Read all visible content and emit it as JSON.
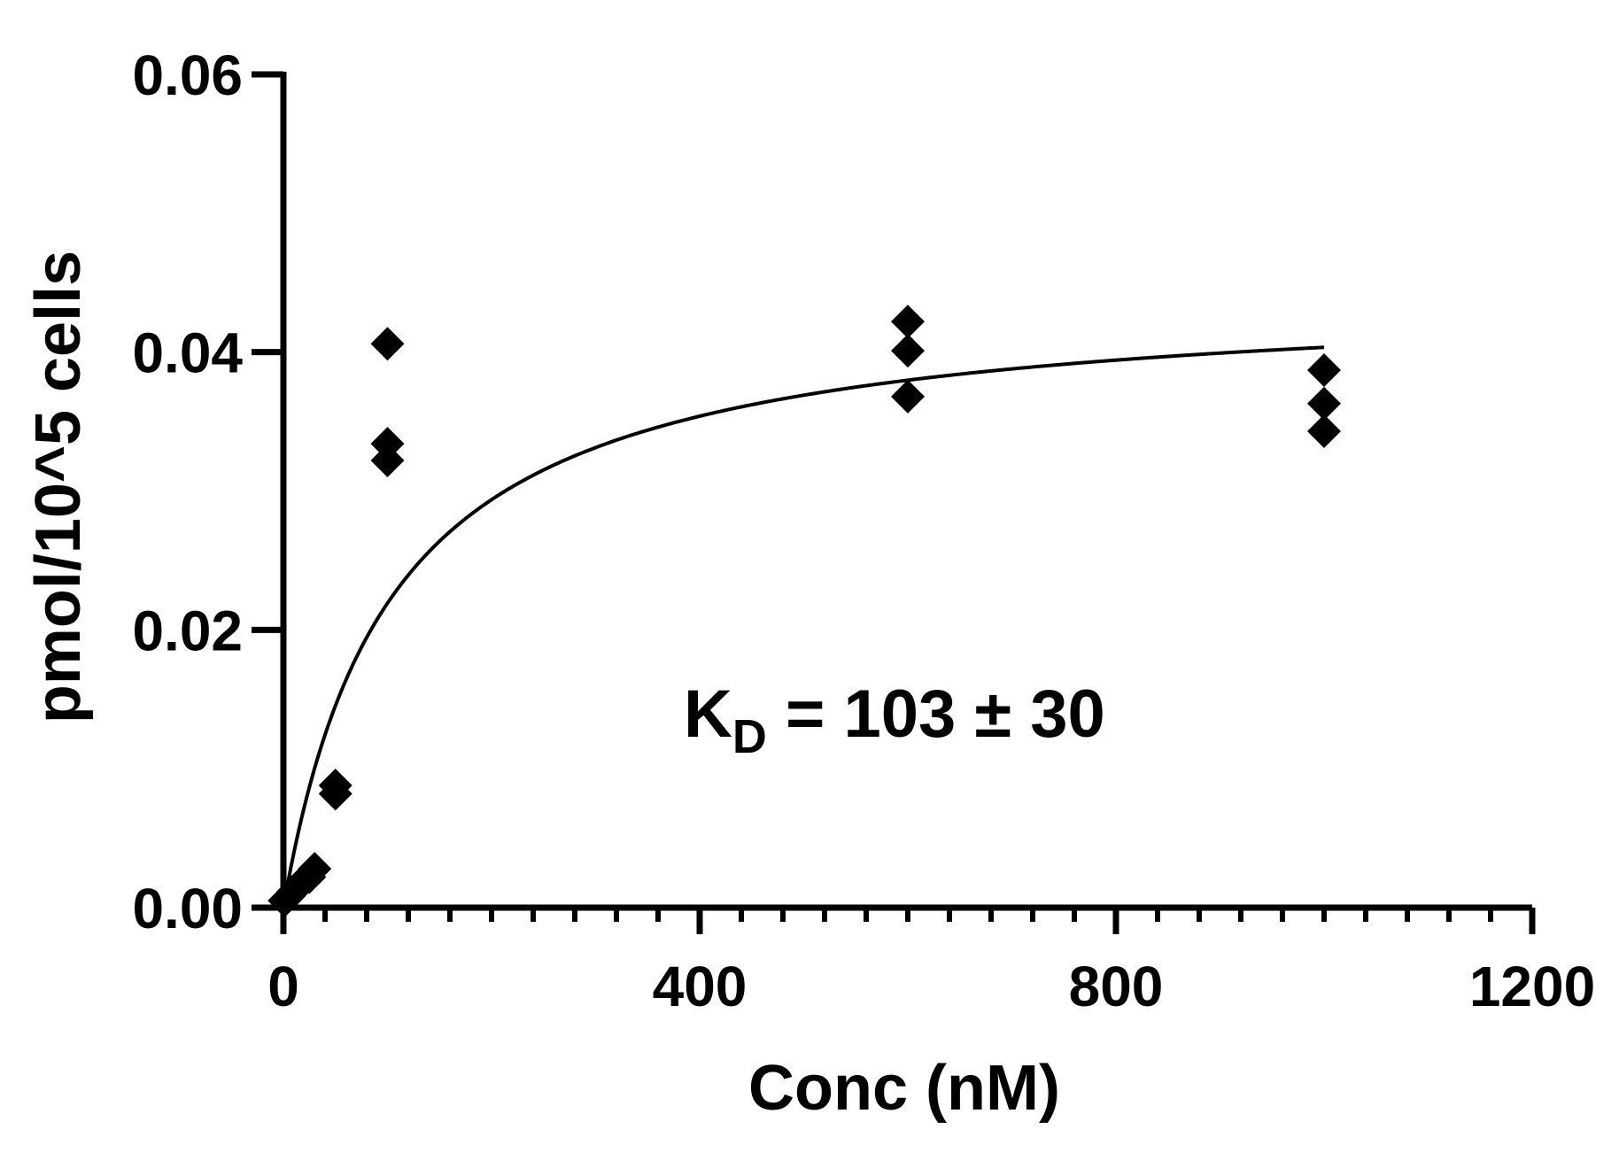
{
  "chart_data": {
    "type": "scatter",
    "title": "",
    "xlabel": "Conc (nM)",
    "ylabel": "pmol/10^5 cells",
    "xlim": [
      0,
      1200
    ],
    "ylim": [
      0,
      0.06
    ],
    "x_ticks": [
      0,
      400,
      800,
      1200
    ],
    "x_tick_labels": [
      "0",
      "400",
      "800",
      "1200"
    ],
    "y_ticks": [
      0,
      0.02,
      0.04,
      0.06
    ],
    "y_tick_labels": [
      "0.00",
      "0.02",
      "0.04",
      "0.06"
    ],
    "x_minor_step": 40,
    "grid": false,
    "legend": "none",
    "marker": "diamond",
    "marker_color": "#000000",
    "line_color": "#000000",
    "annotation": {
      "prefix": "K",
      "subscript": "D",
      "suffix": " = 103 ± 30"
    },
    "series": [
      {
        "points": [
          {
            "x": 1,
            "y": 0.0005
          },
          {
            "x": 5,
            "y": 0.0008
          },
          {
            "x": 10,
            "y": 0.0012
          },
          {
            "x": 20,
            "y": 0.002
          },
          {
            "x": 25,
            "y": 0.0022
          },
          {
            "x": 30,
            "y": 0.0028
          },
          {
            "x": 50,
            "y": 0.0082
          },
          {
            "x": 50,
            "y": 0.0088
          },
          {
            "x": 100,
            "y": 0.0406
          },
          {
            "x": 100,
            "y": 0.0334
          },
          {
            "x": 100,
            "y": 0.0322
          },
          {
            "x": 600,
            "y": 0.0422
          },
          {
            "x": 600,
            "y": 0.0401
          },
          {
            "x": 600,
            "y": 0.0368
          },
          {
            "x": 1000,
            "y": 0.0387
          },
          {
            "x": 1000,
            "y": 0.0363
          },
          {
            "x": 1000,
            "y": 0.0343
          }
        ]
      }
    ],
    "fit": {
      "model": "one-site specific binding",
      "Bmax": 0.0445,
      "KD": 103,
      "x_range": [
        0,
        1000
      ]
    }
  }
}
